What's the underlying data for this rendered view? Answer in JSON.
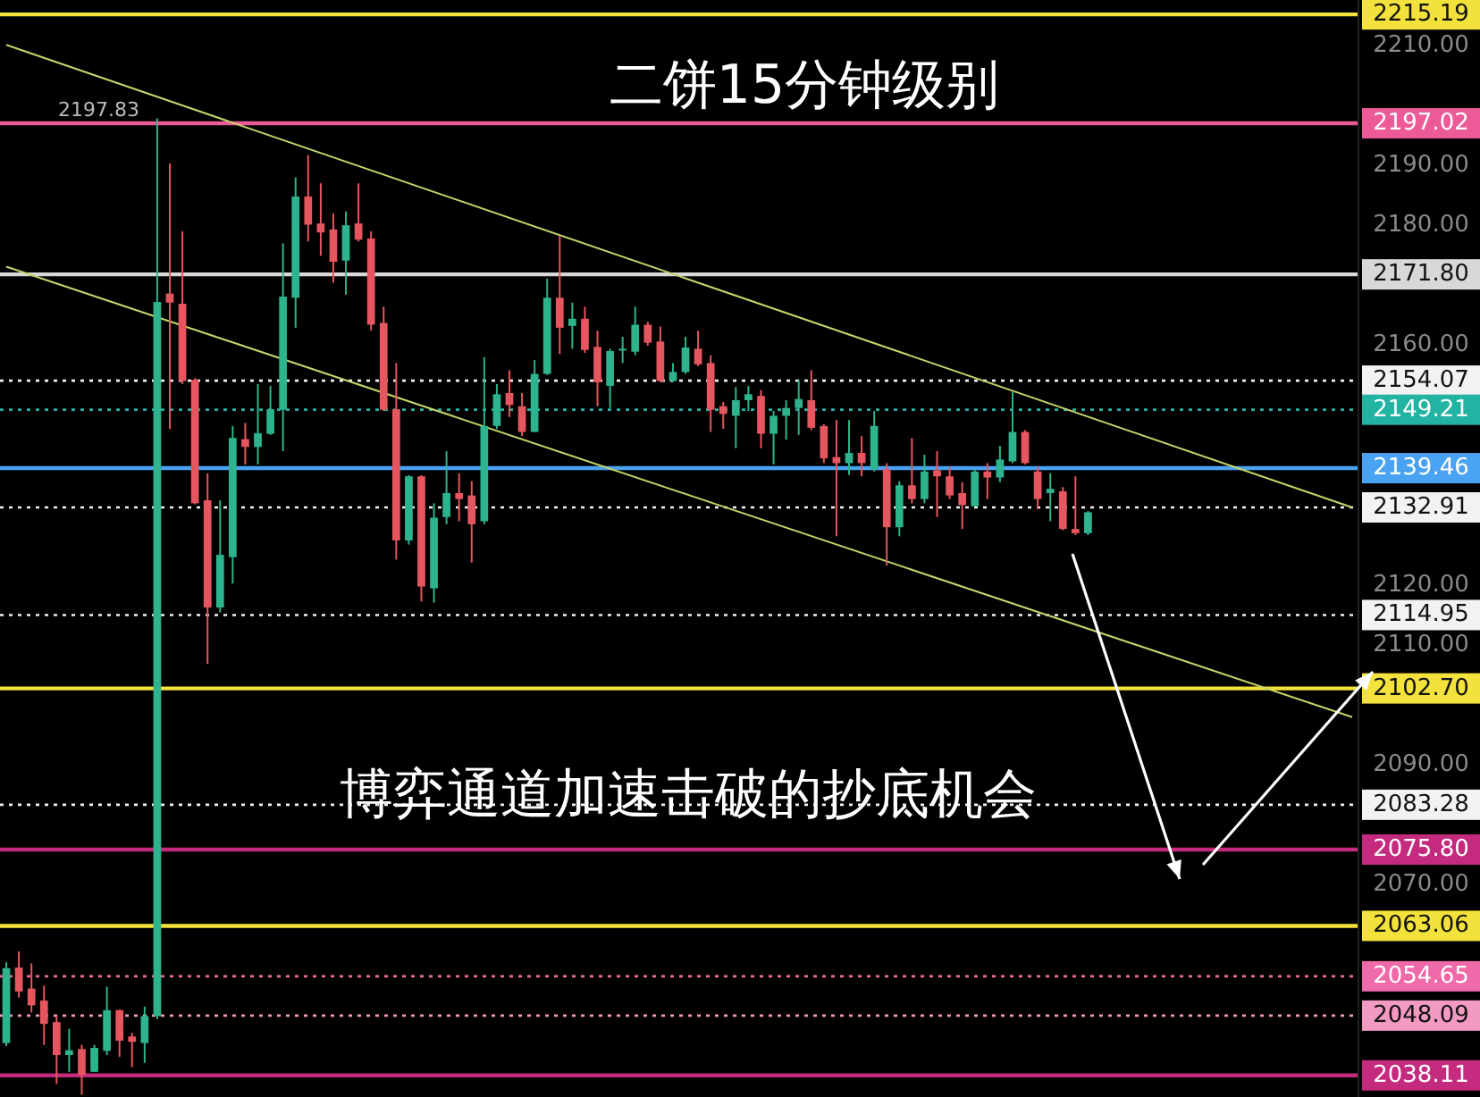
{
  "chart_data": {
    "type": "candlestick",
    "title": "二饼15分钟级别",
    "annotations": [
      "博弈通道加速击破的抄底机会",
      {
        "text": "2197.83",
        "y": 2197.83
      }
    ],
    "categories": [
      null,
      null,
      null,
      null,
      null,
      null,
      null,
      null,
      null,
      null,
      null,
      null,
      null,
      null,
      null,
      null,
      null,
      null,
      null,
      null,
      null,
      null,
      null,
      null,
      null,
      null,
      null,
      null,
      null,
      null,
      null,
      null,
      null,
      null,
      null,
      null,
      null,
      null,
      null,
      null,
      null,
      null,
      null,
      null,
      null,
      null,
      null,
      null,
      null,
      null,
      null,
      null,
      null,
      null,
      null,
      null,
      null,
      null,
      null,
      null,
      null,
      null,
      null,
      null,
      null,
      null,
      null,
      null,
      null,
      null,
      null,
      null,
      null,
      null,
      null,
      null,
      null,
      null,
      null,
      null,
      null,
      null,
      null,
      null,
      null,
      null,
      null,
      null,
      null,
      null,
      null,
      null,
      null,
      null,
      null,
      null,
      null,
      null,
      null,
      null,
      null,
      null,
      null,
      null,
      null,
      null,
      null,
      null
    ],
    "ylim": [
      2034.5,
      2217.6
    ],
    "yticks": [
      {
        "value": 2210,
        "label": "2210.00"
      },
      {
        "value": 2190,
        "label": "2190.00"
      },
      {
        "value": 2180,
        "label": "2180.00"
      },
      {
        "value": 2160,
        "label": "2160.00"
      },
      {
        "value": 2120,
        "label": "2120.00"
      },
      {
        "value": 2110,
        "label": "2110.00"
      },
      {
        "value": 2090,
        "label": "2090.00"
      },
      {
        "value": 2070,
        "label": "2070.00"
      }
    ],
    "tick_labels": "y",
    "ohlc": [
      [
        2043.5,
        2057,
        2043,
        2056
      ],
      [
        2056.1,
        2058.8,
        2051.1,
        2052.1
      ],
      [
        2052.6,
        2056.8,
        2048.6,
        2049.8
      ],
      [
        2050.6,
        2053.1,
        2043.2,
        2046.7
      ],
      [
        2047,
        2048.1,
        2036.7,
        2041.5
      ],
      [
        2041.5,
        2045.9,
        2038.7,
        2042.3
      ],
      [
        2042.5,
        2043.2,
        2034.9,
        2038.2
      ],
      [
        2038.7,
        2043.2,
        2038.7,
        2042.7
      ],
      [
        2042.2,
        2052.9,
        2041.5,
        2049
      ],
      [
        2049,
        2049.1,
        2041.2,
        2043.9
      ],
      [
        2044.6,
        2045.2,
        2039.5,
        2043.7
      ],
      [
        2043.5,
        2049.6,
        2040.2,
        2048
      ],
      [
        2048,
        2197.83,
        2047.5,
        2167.2
      ],
      [
        2168.6,
        2190.3,
        2146,
        2167.1
      ],
      [
        2166.9,
        2179,
        2153.5,
        2154
      ],
      [
        2154.2,
        2154.5,
        2133.4,
        2133.6
      ],
      [
        2134.1,
        2138.6,
        2106.8,
        2116.2
      ],
      [
        2116.2,
        2134.1,
        2115.4,
        2125
      ],
      [
        2124.6,
        2146.5,
        2120.2,
        2144.5
      ],
      [
        2144.3,
        2147,
        2140.1,
        2143
      ],
      [
        2143,
        2153.5,
        2140.1,
        2145.3
      ],
      [
        2145.2,
        2153.2,
        2145,
        2149.3
      ],
      [
        2149.2,
        2177,
        2142.3,
        2168.1
      ],
      [
        2167.9,
        2188,
        2162.9,
        2184.8
      ],
      [
        2184.8,
        2191.7,
        2177.3,
        2180.1
      ],
      [
        2180.3,
        2187,
        2174.9,
        2178.8
      ],
      [
        2179.3,
        2182,
        2170.4,
        2173.9
      ],
      [
        2174.1,
        2182.3,
        2168.4,
        2180
      ],
      [
        2180.3,
        2187,
        2177.3,
        2177.6
      ],
      [
        2177.8,
        2179,
        2162.4,
        2163.4
      ],
      [
        2163.7,
        2166.4,
        2149,
        2149.2
      ],
      [
        2149.3,
        2157,
        2124.2,
        2127.4
      ],
      [
        2127.4,
        2138.3,
        2126.7,
        2138.1
      ],
      [
        2138.1,
        2138.3,
        2117.2,
        2119.7
      ],
      [
        2119.4,
        2133.6,
        2117,
        2131.2
      ],
      [
        2131.3,
        2142.3,
        2130.1,
        2135.3
      ],
      [
        2135.3,
        2138.6,
        2130.6,
        2134.3
      ],
      [
        2134.9,
        2137.3,
        2123.7,
        2130.1
      ],
      [
        2130.6,
        2158,
        2130.1,
        2146.5
      ],
      [
        2146.5,
        2153.5,
        2146,
        2151.8
      ],
      [
        2152,
        2155.8,
        2148,
        2150
      ],
      [
        2149.8,
        2152,
        2144.8,
        2145.5
      ],
      [
        2145.5,
        2157.5,
        2145.5,
        2155.2
      ],
      [
        2155.2,
        2171.1,
        2155,
        2167.9
      ],
      [
        2167.9,
        2178.3,
        2158.5,
        2162.9
      ],
      [
        2163.2,
        2167.1,
        2159.4,
        2164.4
      ],
      [
        2164.4,
        2166.4,
        2158.7,
        2159.2
      ],
      [
        2159.7,
        2162.4,
        2149.8,
        2153.8
      ],
      [
        2153.2,
        2159.4,
        2149.5,
        2159
      ],
      [
        2159.1,
        2161.4,
        2157,
        2159.4
      ],
      [
        2158.9,
        2166.4,
        2158.3,
        2163.4
      ],
      [
        2163.4,
        2163.9,
        2159.9,
        2160.4
      ],
      [
        2160.6,
        2163.1,
        2153.8,
        2154
      ],
      [
        2154,
        2157,
        2153.8,
        2155.5
      ],
      [
        2155.5,
        2161.4,
        2155.2,
        2159.6
      ],
      [
        2159.4,
        2162.4,
        2156.5,
        2156.8
      ],
      [
        2157,
        2158.3,
        2145.5,
        2149.2
      ],
      [
        2149.8,
        2150.5,
        2146,
        2148.5
      ],
      [
        2148.2,
        2153,
        2142.8,
        2150.8
      ],
      [
        2150.8,
        2153.2,
        2149,
        2151.8
      ],
      [
        2151.5,
        2152.5,
        2142.8,
        2145.2
      ],
      [
        2145.2,
        2149,
        2140.1,
        2148.2
      ],
      [
        2148.2,
        2150.8,
        2144.2,
        2149.5
      ],
      [
        2149.5,
        2154.2,
        2145,
        2151
      ],
      [
        2150.8,
        2155.8,
        2145.8,
        2146.2
      ],
      [
        2146.5,
        2146.8,
        2140.3,
        2141.1
      ],
      [
        2141.3,
        2147.5,
        2128.1,
        2140.3
      ],
      [
        2140.3,
        2147.5,
        2138.3,
        2142
      ],
      [
        2142,
        2144.8,
        2138.1,
        2140.3
      ],
      [
        2139.3,
        2149,
        2138.9,
        2146.5
      ],
      [
        2139.3,
        2140.3,
        2123.2,
        2129.6
      ],
      [
        2129.6,
        2137.3,
        2128.1,
        2136.6
      ],
      [
        2136.6,
        2144.5,
        2133.6,
        2134.3
      ],
      [
        2134.3,
        2141.7,
        2133.6,
        2138.9
      ],
      [
        2139.1,
        2142.3,
        2131.3,
        2138.1
      ],
      [
        2138.1,
        2139.6,
        2134.3,
        2134.9
      ],
      [
        2135.3,
        2137.1,
        2129.3,
        2133.3
      ],
      [
        2133.1,
        2139.3,
        2133.1,
        2138.9
      ],
      [
        2138.9,
        2140.3,
        2134.3,
        2137.9
      ],
      [
        2137.9,
        2143.2,
        2137.1,
        2140.9
      ],
      [
        2140.6,
        2152.2,
        2140.3,
        2145.5
      ],
      [
        2145.5,
        2145.8,
        2140.1,
        2140.3
      ],
      [
        2138.9,
        2139.6,
        2132.6,
        2134.3
      ],
      [
        2135.3,
        2138.6,
        2130.6,
        2136
      ],
      [
        2135.6,
        2136.3,
        2129.1,
        2129.3
      ],
      [
        2129.3,
        2138.1,
        2128.3,
        2128.6
      ],
      [
        2128.6,
        2132.3,
        2128.3,
        2132.1
      ],
      null,
      null,
      null,
      null,
      null,
      null,
      null,
      null,
      null,
      null,
      null,
      null,
      null,
      null,
      null,
      null,
      null,
      null,
      null,
      null,
      null
    ],
    "colors": [
      "#2db38d",
      "#e5565e",
      "#e5565e",
      "#e5565e",
      "#e5565e",
      "#2db38d",
      "#e5565e",
      "#2db38d",
      "#2db38d",
      "#e5565e",
      "#e5565e",
      "#2db38d",
      "#2db38d",
      "#e5565e",
      "#e5565e",
      "#e5565e",
      "#e5565e",
      "#2db38d",
      "#2db38d",
      "#e5565e",
      "#2db38d",
      "#2db38d",
      "#2db38d",
      "#2db38d",
      "#e5565e",
      "#e5565e",
      "#e5565e",
      "#2db38d",
      "#e5565e",
      "#e5565e",
      "#e5565e",
      "#e5565e",
      "#2db38d",
      "#e5565e",
      "#2db38d",
      "#2db38d",
      "#e5565e",
      "#e5565e",
      "#2db38d",
      "#2db38d",
      "#e5565e",
      "#e5565e",
      "#2db38d",
      "#2db38d",
      "#e5565e",
      "#2db38d",
      "#e5565e",
      "#e5565e",
      "#2db38d",
      "#2db38d",
      "#2db38d",
      "#e5565e",
      "#e5565e",
      "#2db38d",
      "#2db38d",
      "#e5565e",
      "#e5565e",
      "#e5565e",
      "#2db38d",
      "#2db38d",
      "#e5565e",
      "#2db38d",
      "#2db38d",
      "#2db38d",
      "#e5565e",
      "#e5565e",
      "#e5565e",
      "#2db38d",
      "#e5565e",
      "#2db38d",
      "#e5565e",
      "#2db38d",
      "#e5565e",
      "#2db38d",
      "#e5565e",
      "#e5565e",
      "#e5565e",
      "#2db38d",
      "#e5565e",
      "#2db38d",
      "#2db38d",
      "#e5565e",
      "#e5565e",
      "#2db38d",
      "#e5565e",
      "#e5565e",
      "#2db38d",
      null,
      null,
      null,
      null,
      null,
      null,
      null,
      null,
      null,
      null,
      null,
      null,
      null,
      null,
      null,
      null,
      null,
      null,
      null,
      null,
      null
    ],
    "series": [
      {
        "type": "line",
        "color": "#c5d46a",
        "values": [
          2210.1,
          null,
          null,
          null,
          null,
          null,
          null,
          null,
          null,
          null,
          null,
          null,
          null,
          null,
          null,
          null,
          null,
          null,
          null,
          null,
          null,
          null,
          null,
          null,
          null,
          null,
          null,
          null,
          null,
          null,
          null,
          null,
          null,
          null,
          null,
          null,
          null,
          null,
          null,
          null,
          null,
          null,
          null,
          null,
          null,
          null,
          null,
          null,
          null,
          null,
          null,
          null,
          null,
          null,
          null,
          null,
          null,
          null,
          null,
          null,
          null,
          null,
          null,
          null,
          null,
          null,
          null,
          null,
          null,
          null,
          null,
          null,
          null,
          null,
          null,
          null,
          null,
          null,
          null,
          null,
          null,
          null,
          null,
          null,
          null,
          null,
          null,
          null,
          null,
          null,
          null,
          null,
          null,
          null,
          null,
          null,
          null,
          null,
          null,
          null,
          null,
          null,
          null,
          null,
          null,
          null,
          null,
          2132.9
        ]
      },
      {
        "type": "line",
        "color": "#c5d46a",
        "values": [
          2173.1,
          null,
          null,
          null,
          null,
          null,
          null,
          null,
          null,
          null,
          null,
          null,
          null,
          null,
          null,
          null,
          null,
          null,
          null,
          null,
          null,
          null,
          null,
          null,
          null,
          null,
          null,
          null,
          null,
          null,
          null,
          null,
          null,
          null,
          null,
          null,
          null,
          null,
          null,
          null,
          null,
          null,
          null,
          null,
          null,
          null,
          null,
          null,
          null,
          null,
          null,
          null,
          null,
          null,
          null,
          null,
          null,
          null,
          null,
          null,
          null,
          null,
          null,
          null,
          null,
          null,
          null,
          null,
          null,
          null,
          null,
          null,
          null,
          null,
          null,
          null,
          null,
          null,
          null,
          null,
          null,
          null,
          null,
          null,
          null,
          null,
          null,
          null,
          null,
          null,
          null,
          null,
          null,
          null,
          null,
          null,
          null,
          null,
          null,
          null,
          null,
          null,
          null,
          null,
          null,
          null,
          null,
          2097.9
        ]
      }
    ],
    "ref_lines": [
      {
        "axis": "y",
        "value": 2215.19,
        "label": "2215.19",
        "color": "#f3e23c",
        "line_style": "solid"
      },
      {
        "axis": "y",
        "value": 2197.02,
        "label": "2197.02",
        "color": "#ec5b98",
        "line_style": "solid"
      },
      {
        "axis": "y",
        "value": 2171.8,
        "label": "2171.80",
        "color": "#d8d8d8",
        "line_style": "solid"
      },
      {
        "axis": "y",
        "value": 2154.07,
        "label": "2154.07",
        "color": "#f2f2f2",
        "line_style": "dotted"
      },
      {
        "axis": "y",
        "value": 2149.21,
        "label": "2149.21",
        "color": "#22b3a2",
        "line_style": "dotted"
      },
      {
        "axis": "y",
        "value": 2139.46,
        "label": "2139.46",
        "color": "#4aa3f2",
        "line_style": "solid"
      },
      {
        "axis": "y",
        "value": 2132.91,
        "label": "2132.91",
        "color": "#f2f2f2",
        "line_style": "dotted"
      },
      {
        "axis": "y",
        "value": 2114.95,
        "label": "2114.95",
        "color": "#f2f2f2",
        "line_style": "dotted"
      },
      {
        "axis": "y",
        "value": 2102.7,
        "label": "2102.70",
        "color": "#f3e23c",
        "line_style": "solid"
      },
      {
        "axis": "y",
        "value": 2083.28,
        "label": "2083.28",
        "color": "#f2f2f2",
        "line_style": "dotted"
      },
      {
        "axis": "y",
        "value": 2075.8,
        "label": "2075.80",
        "color": "#c42a7e",
        "line_style": "solid"
      },
      {
        "axis": "y",
        "value": 2063.06,
        "label": "2063.06",
        "color": "#f3e23c",
        "line_style": "solid"
      },
      {
        "axis": "y",
        "value": 2054.65,
        "label": "2054.65",
        "color": "#ef6aa8",
        "line_style": "dotted"
      },
      {
        "axis": "y",
        "value": 2048.09,
        "label": "2048.09",
        "color": "#f39ac2",
        "line_style": "dotted"
      },
      {
        "axis": "y",
        "value": 2038.11,
        "label": "2038.11",
        "color": "#c42a7e",
        "line_style": "solid"
      }
    ]
  }
}
